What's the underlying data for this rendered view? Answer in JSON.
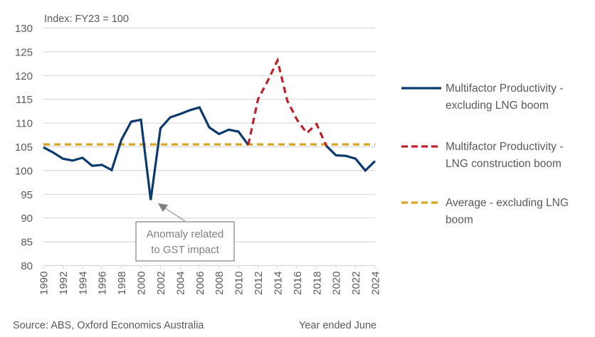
{
  "chart_data": {
    "type": "line",
    "title": "",
    "subtitle": "Index: FY23 = 100",
    "xlabel": "Year ended June",
    "ylabel": "",
    "source": "Source: ABS, Oxford Economics Australia",
    "ylim": [
      80,
      130
    ],
    "yticks": [
      80,
      85,
      90,
      95,
      100,
      105,
      110,
      115,
      120,
      125,
      130
    ],
    "xlim": [
      1990,
      2024
    ],
    "xticks": [
      1990,
      1992,
      1994,
      1996,
      1998,
      2000,
      2002,
      2004,
      2006,
      2008,
      2010,
      2012,
      2014,
      2016,
      2018,
      2020,
      2022,
      2024
    ],
    "grid": true,
    "legend_position": "right",
    "series": [
      {
        "name": "Multifactor Productivity - excluding LNG boom",
        "legend_lines": [
          "Multifactor Productivity -",
          "excluding LNG boom"
        ],
        "style": "solid",
        "color": "#0b3a6f",
        "segments": [
          {
            "x": [
              1990,
              1991,
              1992,
              1993,
              1994,
              1995,
              1996,
              1997,
              1998,
              1999,
              2000,
              2001,
              2002,
              2003,
              2004,
              2005,
              2006,
              2007,
              2008,
              2009,
              2010,
              2011
            ],
            "y": [
              104.9,
              103.8,
              102.5,
              102.1,
              102.7,
              101.0,
              101.2,
              100.1,
              106.5,
              110.3,
              110.7,
              93.8,
              108.9,
              111.2,
              111.9,
              112.7,
              113.3,
              109.1,
              107.7,
              108.6,
              108.2,
              105.4
            ]
          },
          {
            "x": [
              2019,
              2020,
              2021,
              2022,
              2023,
              2024
            ],
            "y": [
              105.2,
              103.2,
              103.1,
              102.5,
              100.0,
              102.0
            ]
          }
        ]
      },
      {
        "name": "Multifactor Productivity - LNG construction boom",
        "legend_lines": [
          "Multifactor Productivity -",
          "LNG construction boom"
        ],
        "style": "dashed",
        "color": "#c0202a",
        "segments": [
          {
            "x": [
              2011,
              2012,
              2013,
              2014,
              2015,
              2016,
              2017,
              2018,
              2019
            ],
            "y": [
              105.4,
              115.0,
              118.9,
              123.2,
              114.7,
              110.7,
              107.9,
              109.8,
              105.2
            ]
          }
        ]
      },
      {
        "name": "Average - excluding LNG boom",
        "legend_lines": [
          "Average - excluding LNG",
          "boom"
        ],
        "style": "dashed",
        "color": "#d9a520",
        "segments": [
          {
            "x": [
              1990,
              2024
            ],
            "y": [
              105.5,
              105.5
            ]
          }
        ]
      }
    ],
    "annotations": [
      {
        "text_lines": [
          "Anomaly related",
          "to GST impact"
        ],
        "points_to": {
          "x": 2001,
          "y": 93.8
        }
      }
    ]
  }
}
